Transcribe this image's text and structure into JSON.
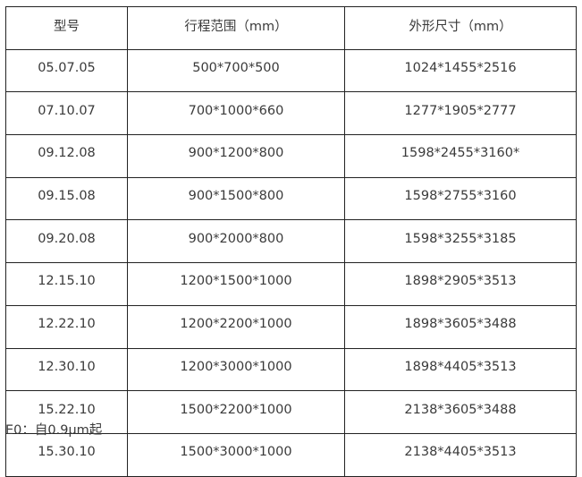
{
  "table": {
    "headers": [
      "型号",
      "行程范围（mm）",
      "外形尺寸（mm）"
    ],
    "rows": [
      [
        "05.07.05",
        "500*700*500",
        "1024*1455*2516"
      ],
      [
        "07.10.07",
        "700*1000*660",
        "1277*1905*2777"
      ],
      [
        "09.12.08",
        "900*1200*800",
        "1598*2455*3160*"
      ],
      [
        "09.15.08",
        "900*1500*800",
        "1598*2755*3160"
      ],
      [
        "09.20.08",
        "900*2000*800",
        "1598*3255*3185"
      ],
      [
        "12.15.10",
        "1200*1500*1000",
        "1898*2905*3513"
      ],
      [
        "12.22.10",
        "1200*2200*1000",
        "1898*3605*3488"
      ],
      [
        "12.30.10",
        "1200*3000*1000",
        "1898*4405*3513"
      ],
      [
        "15.22.10",
        "1500*2200*1000",
        "2138*3605*3488"
      ],
      [
        "15.30.10",
        "1500*3000*1000",
        "2138*4405*3513"
      ]
    ]
  },
  "footnote": "E0：自0.9μm起"
}
